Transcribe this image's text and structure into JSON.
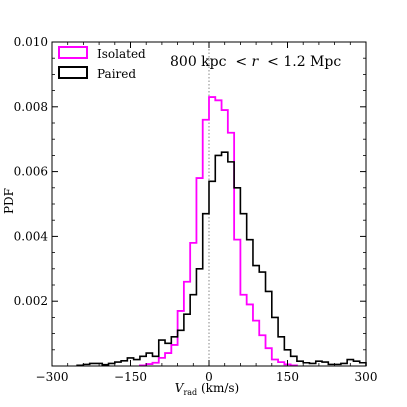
{
  "chart_data": {
    "type": "histogram",
    "title": "",
    "annotation": "800 kpc  < r  < 1.2 Mpc",
    "xlabel": "V",
    "xlabel_sub": "rad",
    "xlabel_unit": " (km/s)",
    "ylabel": "PDF",
    "xlim": [
      -300,
      300
    ],
    "ylim": [
      0,
      0.01
    ],
    "x_ticks": [
      -300,
      -150,
      0,
      150,
      300
    ],
    "y_ticks": [
      0.002,
      0.004,
      0.006,
      0.008,
      0.01
    ],
    "y_tick_labels": [
      "0.002",
      "0.004",
      "0.006",
      "0.008",
      "0.010"
    ],
    "bin_width": 12,
    "vertical_reference_line": 0,
    "legend_position": "top-left",
    "series": [
      {
        "name": "Isolated",
        "color": "#ff00ff",
        "bins": [
          -132,
          -120,
          -108,
          -96,
          -84,
          -72,
          -60,
          -48,
          -36,
          -24,
          -12,
          0,
          12,
          24,
          36,
          48,
          60,
          72,
          84,
          96,
          108,
          120,
          132,
          144,
          156
        ],
        "values": [
          2e-05,
          6e-05,
          0.0001,
          0.00025,
          0.0004,
          0.00065,
          0.0017,
          0.0026,
          0.0038,
          0.0058,
          0.0076,
          0.0083,
          0.0082,
          0.0079,
          0.0072,
          0.0039,
          0.0022,
          0.0019,
          0.0014,
          0.00095,
          0.00055,
          0.0002,
          0.00012,
          5e-05,
          2e-05
        ]
      },
      {
        "name": "Paired",
        "color": "#000000",
        "bins": [
          -252,
          -240,
          -228,
          -216,
          -204,
          -192,
          -180,
          -168,
          -156,
          -144,
          -132,
          -120,
          -108,
          -96,
          -84,
          -72,
          -60,
          -48,
          -36,
          -24,
          -12,
          0,
          12,
          24,
          36,
          48,
          60,
          72,
          84,
          96,
          108,
          120,
          132,
          144,
          156,
          168,
          180,
          192,
          204,
          216,
          228,
          240,
          252,
          264,
          276,
          288
        ],
        "values": [
          2e-05,
          5e-05,
          8e-05,
          8e-05,
          4e-05,
          8e-05,
          0.00012,
          0.00016,
          0.00025,
          0.0002,
          0.0003,
          0.0004,
          0.0003,
          0.0008,
          0.0007,
          0.0009,
          0.0011,
          0.0016,
          0.0022,
          0.003,
          0.0047,
          0.0057,
          0.0065,
          0.0066,
          0.0063,
          0.0055,
          0.0047,
          0.0039,
          0.0031,
          0.0029,
          0.0023,
          0.0015,
          0.0009,
          0.0005,
          0.0003,
          0.00015,
          0.0001,
          8e-05,
          0.00015,
          0.00012,
          5e-05,
          5e-05,
          8e-05,
          0.0002,
          0.00015,
          0.0001
        ]
      }
    ]
  }
}
